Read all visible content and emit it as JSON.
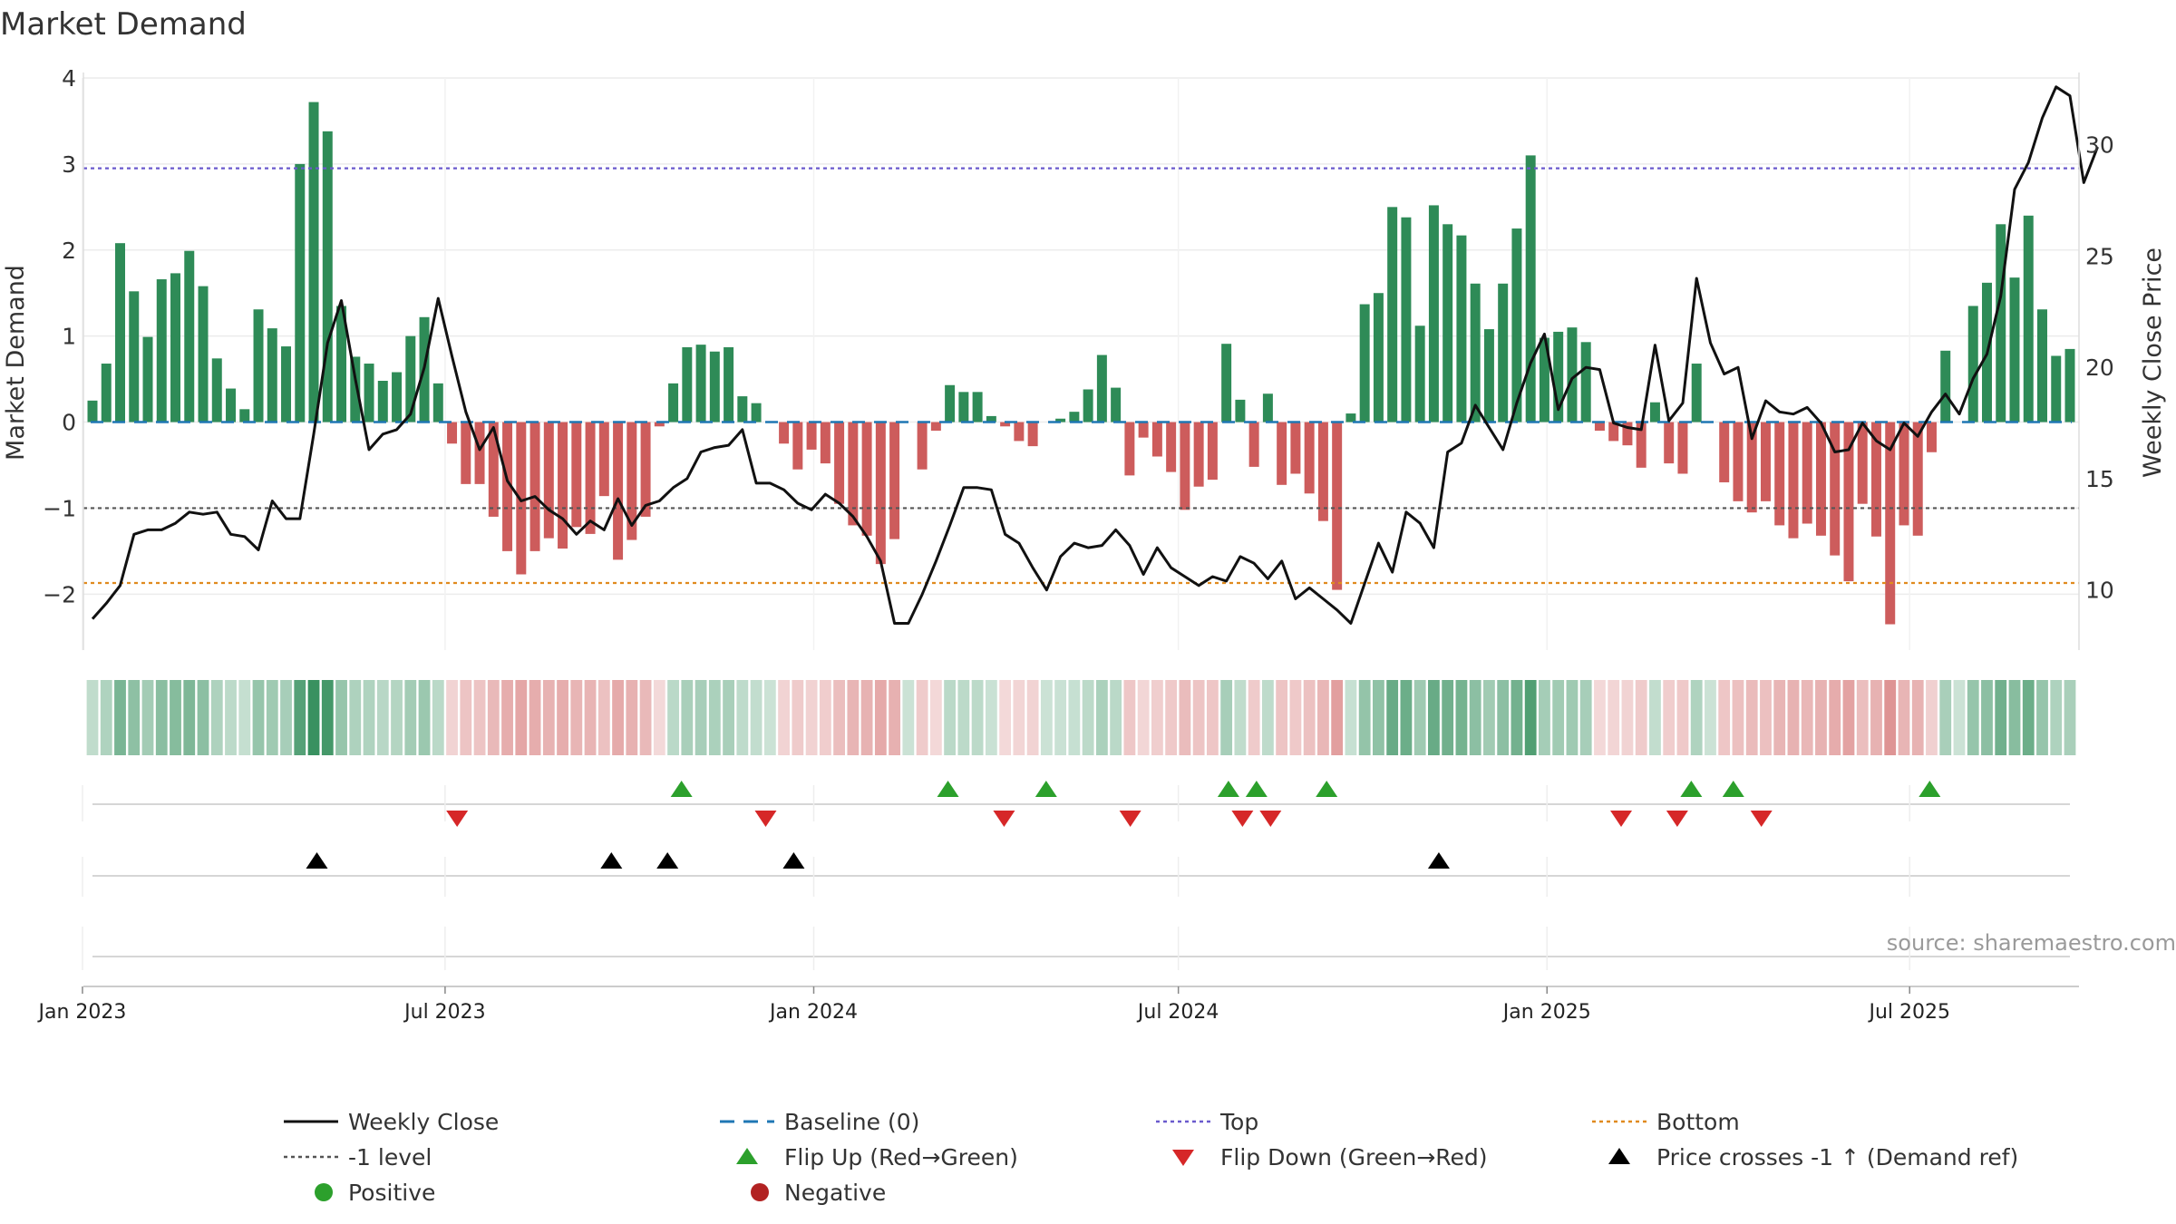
{
  "title": "Market Demand",
  "source": "source: sharemaestro.com",
  "colors": {
    "positive": "#2e8b57",
    "negative": "#cd5c5c",
    "price": "#111111",
    "baseline": "#1f77b4",
    "top": "#6a5acd",
    "minus_one": "#555555",
    "bottom": "#e08a1e",
    "flip_up": "#2ca02c",
    "flip_down": "#d62728",
    "cross": "#000000",
    "legend_positive": "#2ca02c",
    "legend_negative": "#b22222"
  },
  "legend": [
    {
      "key": "close",
      "label": "Weekly Close",
      "marker": "line-solid"
    },
    {
      "key": "baseline",
      "label": "Baseline (0)",
      "marker": "line-dash"
    },
    {
      "key": "top",
      "label": "Top",
      "marker": "line-dot-blue"
    },
    {
      "key": "bottom",
      "label": "Bottom",
      "marker": "line-dot-orange"
    },
    {
      "key": "minus1",
      "label": "-1 level",
      "marker": "line-dot-grey"
    },
    {
      "key": "flip_up",
      "label": "Flip Up (Red→Green)",
      "marker": "triangle-up-green"
    },
    {
      "key": "flip_down",
      "label": "Flip Down (Green→Red)",
      "marker": "triangle-down-red"
    },
    {
      "key": "cross",
      "label": "Price crosses -1 ↑ (Demand ref)",
      "marker": "triangle-up-black"
    },
    {
      "key": "positive",
      "label": "Positive",
      "marker": "dot-green"
    },
    {
      "key": "negative",
      "label": "Negative",
      "marker": "dot-red"
    }
  ],
  "chart_data": {
    "type": "bar",
    "title": "Market Demand",
    "ylabel": "Market Demand",
    "y2label": "Weekly Close Price",
    "ylim": [
      -2.65,
      4.0
    ],
    "y2lim": [
      7.3,
      33.0
    ],
    "yticks": [
      4,
      3,
      2,
      1,
      0,
      -1,
      -2
    ],
    "ytick_labels": [
      "4",
      "3",
      "2",
      "1",
      "0",
      "−1",
      "−2"
    ],
    "y2ticks": [
      30,
      25,
      20,
      15,
      10
    ],
    "y2tick_labels": [
      "30",
      "25",
      "20",
      "15",
      "10"
    ],
    "start_date": "2023-01-06",
    "end_date": "2025-09-19",
    "xticks": [
      {
        "date": "2023-01-01",
        "label": "Jan 2023"
      },
      {
        "date": "2023-07-01",
        "label": "Jul 2023"
      },
      {
        "date": "2024-01-01",
        "label": "Jan 2024"
      },
      {
        "date": "2024-07-01",
        "label": "Jul 2024"
      },
      {
        "date": "2025-01-01",
        "label": "Jan 2025"
      },
      {
        "date": "2025-07-01",
        "label": "Jul 2025"
      }
    ],
    "reference_lines": {
      "top": 2.95,
      "minus_one": -1.0,
      "bottom": -1.87,
      "baseline": 0
    },
    "demand": [
      0.25,
      0.68,
      2.08,
      1.52,
      0.99,
      1.66,
      1.73,
      1.99,
      1.58,
      0.74,
      0.39,
      0.15,
      1.31,
      1.09,
      0.88,
      3.0,
      3.72,
      3.38,
      1.35,
      0.76,
      0.68,
      0.48,
      0.58,
      1.0,
      1.22,
      0.45,
      -0.25,
      -0.72,
      -0.72,
      -1.1,
      -1.5,
      -1.77,
      -1.5,
      -1.35,
      -1.47,
      -1.22,
      -1.3,
      -0.86,
      -1.6,
      -1.37,
      -1.1,
      -0.05,
      0.45,
      0.87,
      0.9,
      0.82,
      0.87,
      0.3,
      0.22,
      0,
      -0.25,
      -0.55,
      -0.32,
      -0.48,
      -0.95,
      -1.2,
      -1.32,
      -1.65,
      -1.36,
      0,
      -0.55,
      -0.1,
      0.43,
      0.35,
      0.35,
      0.07,
      -0.05,
      -0.22,
      -0.28,
      0,
      0.04,
      0.12,
      0.38,
      0.78,
      0.4,
      -0.62,
      -0.18,
      -0.4,
      -0.58,
      -1.02,
      -0.75,
      -0.67,
      0.91,
      0.26,
      -0.52,
      0.33,
      -0.73,
      -0.6,
      -0.83,
      -1.15,
      -1.95,
      0.1,
      1.37,
      1.5,
      2.5,
      2.38,
      1.12,
      2.52,
      2.3,
      2.17,
      1.61,
      1.08,
      1.61,
      2.25,
      3.1,
      0.98,
      1.05,
      1.1,
      0.93,
      -0.1,
      -0.22,
      -0.27,
      -0.53,
      0.23,
      -0.48,
      -0.6,
      0.68,
      0,
      -0.7,
      -0.92,
      -1.05,
      -0.92,
      -1.2,
      -1.35,
      -1.18,
      -1.32,
      -1.55,
      -1.85,
      -0.95,
      -1.33,
      -2.35,
      -1.2,
      -1.32,
      -0.35,
      0.83,
      0,
      1.35,
      1.62,
      2.3,
      1.68,
      2.4,
      1.31,
      0.77,
      0.85
    ],
    "close": [
      8.7,
      9.4,
      10.2,
      12.5,
      12.7,
      12.7,
      13.0,
      13.5,
      13.4,
      13.5,
      12.5,
      12.4,
      11.8,
      14.0,
      13.2,
      13.2,
      17.0,
      21.1,
      23.0,
      19.5,
      16.3,
      17.0,
      17.2,
      17.9,
      20.0,
      23.1,
      20.5,
      18.0,
      16.3,
      17.3,
      14.9,
      14.0,
      14.2,
      13.6,
      13.2,
      12.5,
      13.1,
      12.7,
      14.1,
      12.9,
      13.8,
      14.0,
      14.6,
      15.0,
      16.2,
      16.4,
      16.5,
      17.2,
      14.8,
      14.8,
      14.5,
      13.9,
      13.6,
      14.3,
      13.9,
      13.3,
      12.4,
      11.3,
      8.5,
      8.5,
      9.8,
      11.3,
      12.9,
      14.6,
      14.6,
      14.5,
      12.5,
      12.1,
      11.0,
      10.0,
      11.5,
      12.1,
      11.9,
      12.0,
      12.7,
      12.0,
      10.7,
      11.9,
      11.0,
      10.6,
      10.2,
      10.6,
      10.4,
      11.5,
      11.2,
      10.5,
      11.3,
      9.6,
      10.1,
      9.6,
      9.1,
      8.5,
      10.3,
      12.1,
      10.8,
      13.5,
      13.0,
      11.9,
      16.2,
      16.6,
      18.3,
      17.3,
      16.3,
      18.4,
      20.2,
      21.5,
      18.1,
      19.5,
      20.0,
      19.9,
      17.5,
      17.3,
      17.2,
      21.0,
      17.6,
      18.4,
      24.0,
      21.1,
      19.7,
      20.0,
      16.8,
      18.5,
      18.0,
      17.9,
      18.2,
      17.5,
      16.2,
      16.3,
      17.5,
      16.7,
      16.3,
      17.5,
      16.9,
      18.0,
      18.8,
      17.9,
      19.5,
      20.6,
      23.2,
      28.0,
      29.2,
      31.2,
      32.6,
      32.2,
      28.3,
      29.9
    ],
    "flip_up_dates": [
      "2023-10-27",
      "2024-03-08",
      "2024-04-26",
      "2024-07-26",
      "2024-08-09",
      "2024-09-13",
      "2025-03-14",
      "2025-04-04",
      "2025-07-11"
    ],
    "flip_down_dates": [
      "2023-07-07",
      "2023-12-08",
      "2024-04-05",
      "2024-06-07",
      "2024-08-02",
      "2024-08-16",
      "2025-02-07",
      "2025-03-07",
      "2025-04-18"
    ],
    "cross_dates": [
      "2023-04-28",
      "2023-09-22",
      "2023-10-20",
      "2023-12-22",
      "2024-11-08"
    ]
  }
}
